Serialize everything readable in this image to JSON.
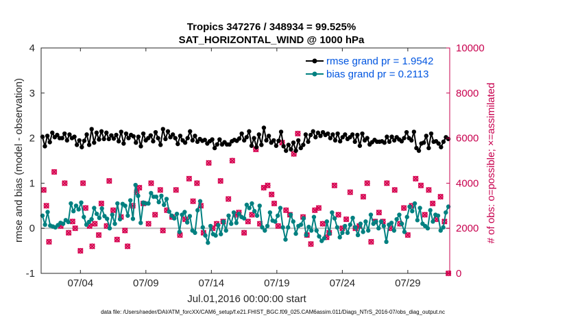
{
  "chart_data": {
    "type": "line",
    "title": "Tropics 347276 / 348934 = 99.525%",
    "subtitle": "SAT_HORIZONTAL_WIND @ 1000 hPa",
    "xlabel": "Jul.01,2016 00:00:00 start",
    "ylabel": "rmse and bias (model - observation)",
    "y2label": "# of obs: o=possible; ×=assimilated",
    "footer": "data file: /Users/raeder/DAI/ATM_forcXX/CAM6_setup/f.e21.FHIST_BGC.f09_025.CAM6assim.011/Diags_NTrS_2016-07/obs_diag_output.nc",
    "xlim": [
      1,
      32.2
    ],
    "ylim": [
      -1,
      4
    ],
    "y2lim": [
      0,
      10000
    ],
    "x_ticks": [
      4,
      9,
      14,
      19,
      24,
      29
    ],
    "x_tick_labels": [
      "07/04",
      "07/09",
      "07/14",
      "07/19",
      "07/24",
      "07/29"
    ],
    "y_ticks": [
      -1,
      0,
      1,
      2,
      3,
      4
    ],
    "y_tick_labels": [
      "-1",
      "0",
      "1",
      "2",
      "3",
      "4"
    ],
    "y2_ticks": [
      0,
      2000,
      4000,
      6000,
      8000,
      10000
    ],
    "y2_tick_labels": [
      "0",
      "2000",
      "4000",
      "6000",
      "8000",
      "10000"
    ],
    "legend_position": "top-right",
    "colors": {
      "rmse": "#000000",
      "bias": "#008080",
      "obs": "#d6004f",
      "zero_line": "#bfbfbf",
      "axis": "#262626",
      "right_axis": "#c8004e"
    },
    "series": [
      {
        "name": "rmse grand pr = 1.9542",
        "values": [
          2.03,
          1.82,
          2.05,
          1.91,
          2.12,
          2.02,
          2.07,
          2.0,
          2.0,
          2.1,
          1.95,
          2.08,
          2.0,
          2.03,
          1.85,
          1.95,
          1.8,
          1.94,
          2.08,
          1.85,
          2.2,
          1.9,
          2.12,
          1.97,
          2.15,
          1.98,
          2.12,
          1.98,
          2.06,
          1.99,
          2.07,
          1.93,
          2.14,
          1.88,
          2.1,
          2.0,
          2.07,
          2.04,
          1.9,
          2.03,
          1.82,
          2.1,
          1.95,
          2.0,
          2.06,
          1.93,
          2.13,
          2.0,
          1.85,
          2.2,
          1.98,
          2.15,
          2.02,
          2.08,
          2.0,
          1.87,
          2.05,
          1.95,
          1.9,
          2.0,
          2.15,
          1.95,
          2.05,
          1.92,
          1.98,
          1.94,
          1.96,
          1.88,
          1.93,
          1.97,
          1.78,
          1.86,
          1.97,
          1.86,
          1.91,
          1.86,
          1.86,
          1.93,
          1.96,
          1.94,
          1.99,
          2.1,
          1.95,
          2.02,
          2.15,
          1.83,
          2.0,
          1.8,
          2.08,
          1.85,
          2.23,
          1.95,
          2.05,
          1.9,
          1.95,
          1.83,
          1.94,
          2.14,
          1.82,
          1.72,
          1.85,
          1.75,
          1.9,
          1.72,
          1.95,
          1.78,
          1.85,
          2.08,
          1.92,
          2.07,
          2.15,
          2.02,
          2.12,
          2.05,
          2.13,
          2.07,
          2.1,
          2.0,
          2.08,
          1.95,
          2.1,
          1.93,
          2.02,
          2.08,
          1.98,
          2.02,
          2.08,
          1.92,
          2.07,
          1.83,
          2.1,
          1.95,
          2.0,
          1.86,
          1.91,
          1.96,
          1.92,
          1.92,
          1.93,
          1.9,
          2.03,
          1.92,
          2.03,
          1.95,
          2.02,
          1.97,
          1.93,
          2.0,
          2.13,
          2.0,
          1.95,
          2.14,
          1.78,
          1.72,
          1.88,
          1.9,
          2.05,
          1.78,
          2.1,
          1.92,
          1.93,
          1.88,
          1.8,
          1.92,
          2.02,
          1.98
        ]
      },
      {
        "name": "bias grand pr = 0.2113",
        "values": [
          0.28,
          0.08,
          0.36,
          0.06,
          0.04,
          0.02,
          0.07,
          0.12,
          0.1,
          0.18,
          0.14,
          0.55,
          0.38,
          0.5,
          0.42,
          0.57,
          0.25,
          0.08,
          0.14,
          0.2,
          0.45,
          0.32,
          0.23,
          0.44,
          0.27,
          0.21,
          0.0,
          0.3,
          0.1,
          0.55,
          0.2,
          0.54,
          0.5,
          0.28,
          0.62,
          0.21,
          0.96,
          0.72,
          0.12,
          0.57,
          0.55,
          0.55,
          0.78,
          0.7,
          0.7,
          0.58,
          0.72,
          0.52,
          0.65,
          0.37,
          0.28,
          0.22,
          0.32,
          -0.08,
          0.3,
          0.36,
          0.13,
          0.27,
          -0.05,
          -0.1,
          0.4,
          0.6,
          0.02,
          -0.16,
          -0.32,
          0.05,
          -0.13,
          -0.16,
          0.07,
          -0.13,
          0.15,
          -0.05,
          0.28,
          0.1,
          0.35,
          0.12,
          0.32,
          0.25,
          0.22,
          0.52,
          0.45,
          0.55,
          0.38,
          0.28,
          0.5,
          0.02,
          -0.05,
          0.05,
          0.35,
          0.17,
          0.15,
          0.28,
          0.45,
          0.02,
          -0.25,
          0.02,
          0.3,
          0.15,
          -0.12,
          0.05,
          0.08,
          0.22,
          -0.15,
          0.03,
          -0.05,
          0.25,
          -0.05,
          -0.18,
          -0.28,
          -0.22,
          0.15,
          -0.12,
          0.35,
          0.22,
          0.02,
          -0.2,
          -0.1,
          0.05,
          -0.1,
          0.08,
          0.23,
          0.02,
          -0.15,
          0.1,
          -0.08,
          0.15,
          -0.05,
          0.3,
          0.1,
          0.15,
          0.0,
          0.15,
          0.05,
          -0.3,
          0.08,
          0.12,
          -0.05,
          0.2,
          0.3,
          0.1,
          -0.08,
          0.25,
          0.48,
          0.38,
          0.55,
          0.18,
          0.45,
          0.1,
          0.05,
          0.0,
          0.4,
          0.15,
          0.3,
          0.28,
          -0.05,
          0.02,
          0.35,
          0.48
        ]
      },
      {
        "name": "# of obs possible",
        "axis": "right",
        "x": [
          1.2,
          1.4,
          1.6,
          2.0,
          2.5,
          2.8,
          3.1,
          3.4,
          3.6,
          4.0,
          4.2,
          4.4,
          4.7,
          4.9,
          5.1,
          5.4,
          5.6,
          6.0,
          6.2,
          6.5,
          6.8,
          7.1,
          7.4,
          7.6,
          8.0,
          8.3,
          8.5,
          8.8,
          9.2,
          9.4,
          9.7,
          10.1,
          10.3,
          10.6,
          11.0,
          11.3,
          11.6,
          12.0,
          12.3,
          12.6,
          12.9,
          13.2,
          13.4,
          13.8,
          14.1,
          14.4,
          14.7,
          14.9,
          15.3,
          15.6,
          15.9,
          16.1,
          16.5,
          16.8,
          17.1,
          17.4,
          17.7,
          18.0,
          18.3,
          18.6,
          18.8,
          19.1,
          19.4,
          19.7,
          20.0,
          20.3,
          20.6,
          21.0,
          21.3,
          21.6,
          21.9,
          22.2,
          22.5,
          22.8,
          23.0,
          23.4,
          23.7,
          24.0,
          24.3,
          24.6,
          25.0,
          25.3,
          25.6,
          25.9,
          26.2,
          26.5,
          26.8,
          27.1,
          27.4,
          27.7,
          28.0,
          28.4,
          28.7,
          29.0,
          29.3,
          29.6,
          30.0,
          30.3,
          30.6,
          30.9,
          31.2,
          31.5,
          31.8,
          32.1
        ],
        "values": [
          3700,
          3000,
          1400,
          4500,
          2100,
          4000,
          1800,
          2300,
          2000,
          1000,
          4000,
          2900,
          2100,
          1200,
          2200,
          1700,
          3100,
          2100,
          4100,
          2800,
          1500,
          2500,
          1900,
          1200,
          3000,
          3600,
          3800,
          3100,
          2200,
          4000,
          2600,
          3700,
          1900,
          2800,
          2500,
          3700,
          1700,
          2400,
          4200,
          3200,
          4000,
          3000,
          1800,
          4900,
          2000,
          2200,
          4100,
          2300,
          3300,
          5000,
          2600,
          2700,
          1800,
          2300,
          2600,
          5500,
          2200,
          3800,
          3900,
          3500,
          3100,
          2100,
          5800,
          2800,
          2600,
          5300,
          6200,
          2500,
          1700,
          1300,
          2800,
          2900,
          2200,
          1600,
          1800,
          3900,
          2600,
          2000,
          2400,
          3600,
          2000,
          2100,
          3400,
          4000,
          1400,
          2300,
          2700,
          2300,
          4000,
          2000,
          3700,
          2200,
          2900,
          1700,
          3000,
          4200,
          3900,
          2600,
          3700,
          3100,
          2400,
          3400,
          2300,
          0
        ]
      },
      {
        "name": "# of obs assimilated",
        "axis": "right",
        "marker": "x",
        "x": [
          1.2,
          1.4,
          1.6,
          2.0,
          2.5,
          2.8,
          3.1,
          3.4,
          3.6,
          4.0,
          4.2,
          4.4,
          4.7,
          4.9,
          5.1,
          5.4,
          5.6,
          6.0,
          6.2,
          6.5,
          6.8,
          7.1,
          7.4,
          7.6,
          8.0,
          8.3,
          8.5,
          8.8,
          9.2,
          9.4,
          9.7,
          10.1,
          10.3,
          10.6,
          11.0,
          11.3,
          11.6,
          12.0,
          12.3,
          12.6,
          12.9,
          13.2,
          13.4,
          13.8,
          14.1,
          14.4,
          14.7,
          14.9,
          15.3,
          15.6,
          15.9,
          16.1,
          16.5,
          16.8,
          17.1,
          17.4,
          17.7,
          18.0,
          18.3,
          18.6,
          18.8,
          19.1,
          19.4,
          19.7,
          20.0,
          20.3,
          20.6,
          21.0,
          21.3,
          21.6,
          21.9,
          22.2,
          22.5,
          22.8,
          23.0,
          23.4,
          23.7,
          24.0,
          24.3,
          24.6,
          25.0,
          25.3,
          25.6,
          25.9,
          26.2,
          26.5,
          26.8,
          27.1,
          27.4,
          27.7,
          28.0,
          28.4,
          28.7,
          29.0,
          29.3,
          29.6,
          30.0,
          30.3,
          30.6,
          30.9,
          31.2,
          31.5,
          31.8,
          32.1
        ],
        "values": [
          3700,
          3000,
          1400,
          4500,
          2100,
          4000,
          1800,
          2300,
          2000,
          1000,
          4000,
          2900,
          2100,
          1200,
          2200,
          1700,
          3100,
          2100,
          4100,
          2800,
          1500,
          2500,
          1900,
          1200,
          3000,
          3600,
          3800,
          3100,
          2200,
          4000,
          2600,
          3700,
          1900,
          2800,
          2500,
          3700,
          1700,
          2400,
          4200,
          3200,
          4000,
          3000,
          1800,
          4900,
          2000,
          2200,
          4100,
          2300,
          3300,
          5000,
          2600,
          2700,
          1800,
          2300,
          2600,
          5500,
          2200,
          3800,
          3900,
          3500,
          3100,
          2100,
          5800,
          2800,
          2600,
          5300,
          6200,
          2500,
          1700,
          1300,
          2800,
          2900,
          2200,
          1600,
          1800,
          3900,
          2600,
          2000,
          2400,
          3600,
          2000,
          2100,
          3400,
          4000,
          1400,
          2300,
          2700,
          2300,
          4000,
          2000,
          3700,
          2200,
          2900,
          1700,
          3000,
          4200,
          3900,
          2600,
          3700,
          3100,
          2400,
          3400,
          2300,
          0
        ]
      }
    ]
  }
}
